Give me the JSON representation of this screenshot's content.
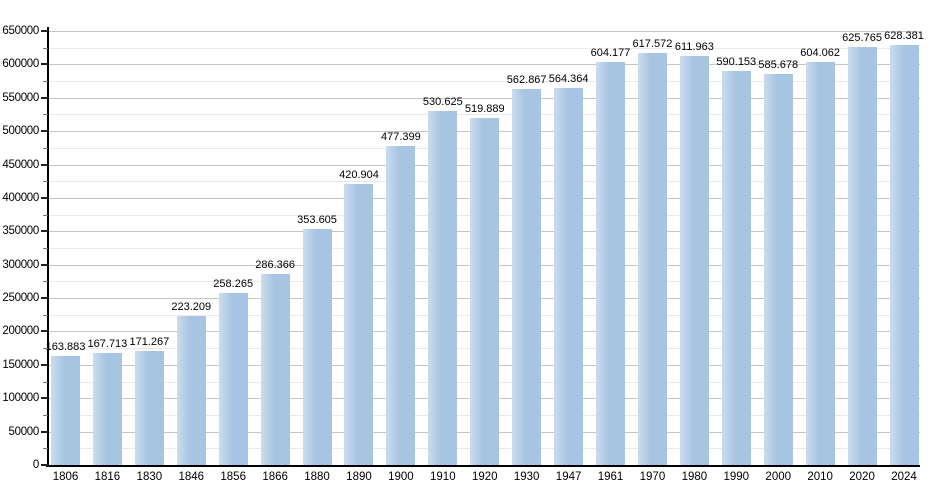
{
  "chart_data": {
    "type": "bar",
    "title": "",
    "xlabel": "",
    "ylabel": "",
    "categories": [
      "1806",
      "1816",
      "1830",
      "1846",
      "1856",
      "1866",
      "1880",
      "1890",
      "1900",
      "1910",
      "1920",
      "1930",
      "1947",
      "1961",
      "1970",
      "1980",
      "1990",
      "2000",
      "2010",
      "2020",
      "2024"
    ],
    "values": [
      163883,
      167713,
      171267,
      223209,
      258265,
      286366,
      353605,
      420904,
      477399,
      530625,
      519889,
      562867,
      564364,
      604177,
      617572,
      611963,
      590153,
      585678,
      604062,
      625765,
      628381
    ],
    "value_labels": [
      "163.883",
      "167.713",
      "171.267",
      "223.209",
      "258.265",
      "286.366",
      "353.605",
      "420.904",
      "477.399",
      "530.625",
      "519.889",
      "562.867",
      "564.364",
      "604.177",
      "617.572",
      "611.963",
      "590.153",
      "585.678",
      "604.062",
      "625.765",
      "628.381"
    ],
    "ylim": [
      0,
      650000
    ],
    "y_major_step": 50000,
    "y_minor_step": 25000,
    "y_tick_labels": [
      "0",
      "50000",
      "100000",
      "150000",
      "200000",
      "250000",
      "300000",
      "350000",
      "400000",
      "450000",
      "500000",
      "550000",
      "600000",
      "650000"
    ],
    "grid": "on",
    "legend_position": "none",
    "colors": {
      "bar_fill": "#a7c4e2",
      "bar_fill_light": "#ccdcee",
      "grid_major": "#c4c4c4",
      "grid_minor": "#e9e9e9",
      "axis": "#000000",
      "text": "#000000",
      "background": "#ffffff"
    }
  }
}
